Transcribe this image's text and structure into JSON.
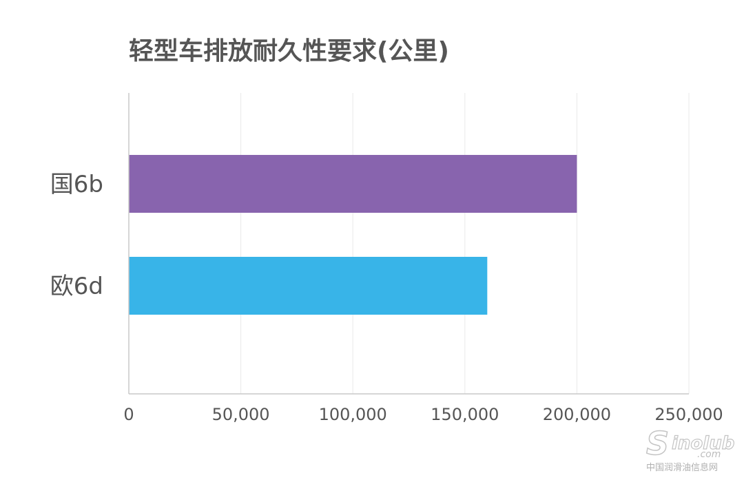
{
  "chart_data": {
    "type": "bar",
    "orientation": "horizontal",
    "title": "轻型车排放耐久性要求(公里)",
    "categories": [
      "国6b",
      "欧6d"
    ],
    "values": [
      200000,
      160000
    ],
    "colors": [
      "#8864ae",
      "#38b4e8"
    ],
    "xlim": [
      0,
      250000
    ],
    "xticks": [
      "0",
      "50,000",
      "100,000",
      "150,000",
      "200,000",
      "250,000"
    ],
    "grid": true,
    "legend": "none"
  },
  "watermark": {
    "logo_main": "S",
    "logo_rest": "inolub",
    "logo_suffix": ".com",
    "caption": "中国润滑油信息网"
  }
}
